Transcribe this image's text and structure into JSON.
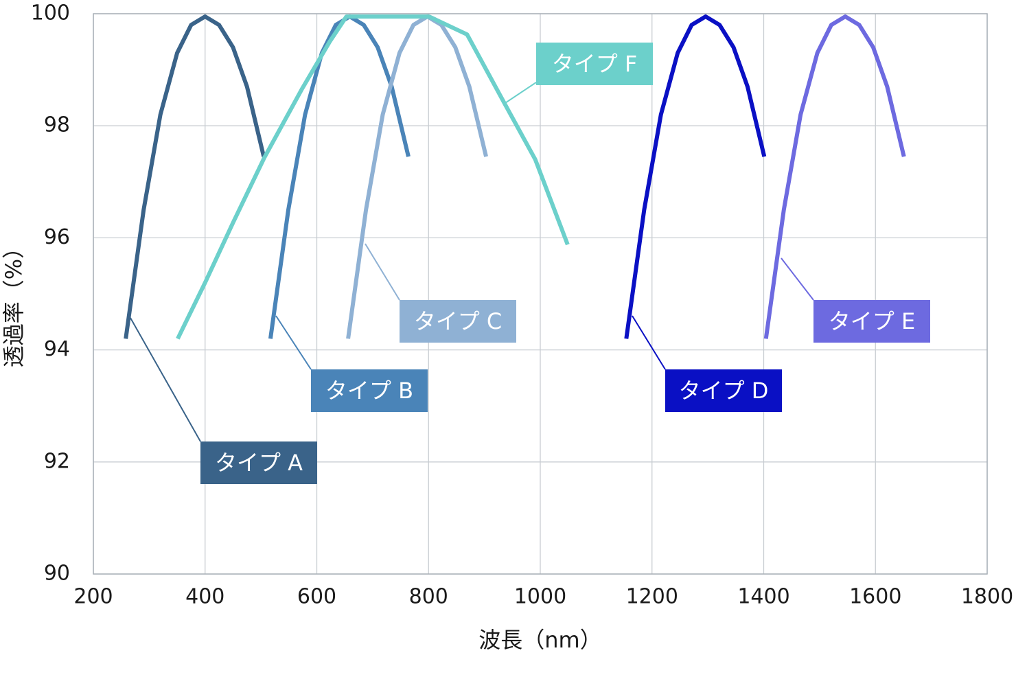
{
  "chart_data": {
    "type": "line",
    "x_label": "波長（nm）",
    "y_label": "透過率（%）",
    "xlim": [
      200,
      1800
    ],
    "xticks": [
      200,
      400,
      600,
      800,
      1000,
      1200,
      1400,
      1600,
      1800
    ],
    "ylim": [
      90,
      100
    ],
    "yticks": [
      90,
      92,
      94,
      96,
      98,
      100
    ],
    "grid": true,
    "series": [
      {
        "name": "タイプ A",
        "color": "#3a6389",
        "x": [
          258,
          290,
          320,
          350,
          375,
          400,
          425,
          450,
          475,
          505
        ],
        "values": [
          94.2,
          96.5,
          98.2,
          99.3,
          99.8,
          99.95,
          99.8,
          99.4,
          98.7,
          97.45
        ]
      },
      {
        "name": "タイプ B",
        "color": "#4a84b8",
        "x": [
          517,
          549,
          579,
          609,
          634,
          659,
          684,
          709,
          734,
          764
        ],
        "values": [
          94.2,
          96.5,
          98.2,
          99.3,
          99.8,
          99.95,
          99.8,
          99.4,
          98.7,
          97.45
        ]
      },
      {
        "name": "タイプ C",
        "color": "#8fb1d4",
        "x": [
          656,
          688,
          718,
          748,
          773,
          798,
          823,
          848,
          873,
          903
        ],
        "values": [
          94.2,
          96.5,
          98.2,
          99.3,
          99.8,
          99.95,
          99.8,
          99.4,
          98.7,
          97.45
        ]
      },
      {
        "name": "タイプ D",
        "color": "#0a10c4",
        "x": [
          1154,
          1186,
          1216,
          1246,
          1271,
          1296,
          1321,
          1346,
          1371,
          1401
        ],
        "values": [
          94.2,
          96.5,
          98.2,
          99.3,
          99.8,
          99.95,
          99.8,
          99.4,
          98.7,
          97.45
        ]
      },
      {
        "name": "タイプ E",
        "color": "#6d6ae0",
        "x": [
          1404,
          1436,
          1466,
          1496,
          1521,
          1546,
          1571,
          1596,
          1621,
          1651
        ],
        "values": [
          94.2,
          96.5,
          98.2,
          99.3,
          99.8,
          99.95,
          99.8,
          99.4,
          98.7,
          97.45
        ]
      },
      {
        "name": "タイプ F",
        "color": "#6cd0cb",
        "x": [
          351,
          400,
          450,
          506,
          573,
          623,
          653,
          801,
          869,
          936,
          991,
          1049
        ],
        "values": [
          94.2,
          95.2,
          96.27,
          97.43,
          98.65,
          99.5,
          99.95,
          99.95,
          99.63,
          98.4,
          97.4,
          95.88
        ]
      }
    ]
  }
}
